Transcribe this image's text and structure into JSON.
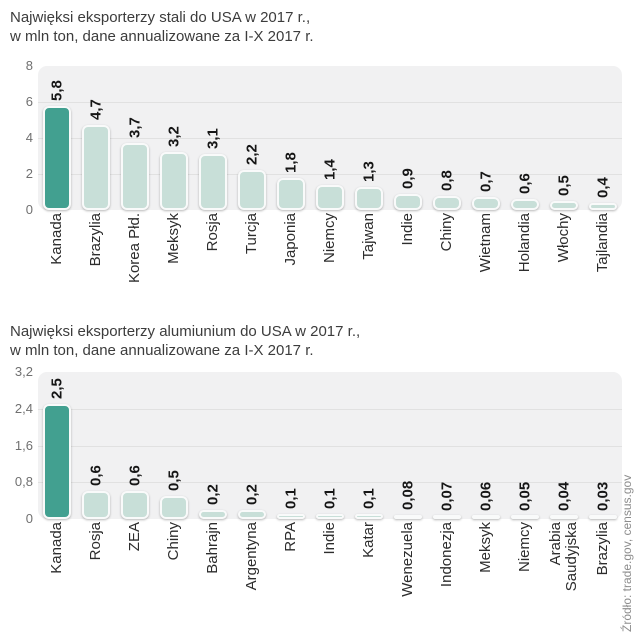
{
  "source": "Źródło: trade.gov, census.gov",
  "colors": {
    "bar_highlight": "#42a090",
    "bar_normal": "#c8dfd8",
    "plot_bg": "#f1f1f2",
    "grid": "#e1e1e1"
  },
  "chart_data": [
    {
      "type": "bar",
      "title_line1": "Najwięksi eksporterzy stali do USA w 2017 r.,",
      "title_line2": "w mln ton, dane annualizowane za I-X 2017 r.",
      "categories": [
        "Kanada",
        "Brazylia",
        "Korea Płd.",
        "Meksyk",
        "Rosja",
        "Turcja",
        "Japonia",
        "Niemcy",
        "Tajwan",
        "Indie",
        "Chiny",
        "Wietnam",
        "Holandia",
        "Włochy",
        "Tajlandia"
      ],
      "values": [
        5.8,
        4.7,
        3.7,
        3.2,
        3.1,
        2.2,
        1.8,
        1.4,
        1.3,
        0.9,
        0.8,
        0.7,
        0.6,
        0.5,
        0.4
      ],
      "value_labels": [
        "5,8",
        "4,7",
        "3,7",
        "3,2",
        "3,1",
        "2,2",
        "1,8",
        "1,4",
        "1,3",
        "0,9",
        "0,8",
        "0,7",
        "0,6",
        "0,5",
        "0,4"
      ],
      "y_ticks": [
        "8",
        "6",
        "4",
        "2",
        "0"
      ],
      "ylim": [
        0,
        8
      ],
      "ylabel": "",
      "xlabel": "",
      "grid": true,
      "legend": "none",
      "highlight_index": 0
    },
    {
      "type": "bar",
      "title_line1": "Najwięksi eksporterzy alumiunium do USA w 2017 r.,",
      "title_line2": "w mln ton, dane annualizowane za I-X 2017 r.",
      "categories": [
        "Kanada",
        "Rosja",
        "ZEA",
        "Chiny",
        "Bahrajn",
        "Argentyna",
        "RPA",
        "Indie",
        "Katar",
        "Wenezuela",
        "Indonezja",
        "Meksyk",
        "Niemcy",
        "Arabia\nSaudyjska",
        "Brazylia"
      ],
      "values": [
        2.5,
        0.6,
        0.6,
        0.5,
        0.2,
        0.2,
        0.1,
        0.1,
        0.1,
        0.08,
        0.07,
        0.06,
        0.05,
        0.04,
        0.03
      ],
      "value_labels": [
        "2,5",
        "0,6",
        "0,6",
        "0,5",
        "0,2",
        "0,2",
        "0,1",
        "0,1",
        "0,1",
        "0,08",
        "0,07",
        "0,06",
        "0,05",
        "0,04",
        "0,03"
      ],
      "y_ticks": [
        "3,2",
        "2,4",
        "1,6",
        "0,8",
        "0"
      ],
      "ylim": [
        0,
        3.2
      ],
      "ylabel": "",
      "xlabel": "",
      "grid": true,
      "legend": "none",
      "highlight_index": 0
    }
  ]
}
